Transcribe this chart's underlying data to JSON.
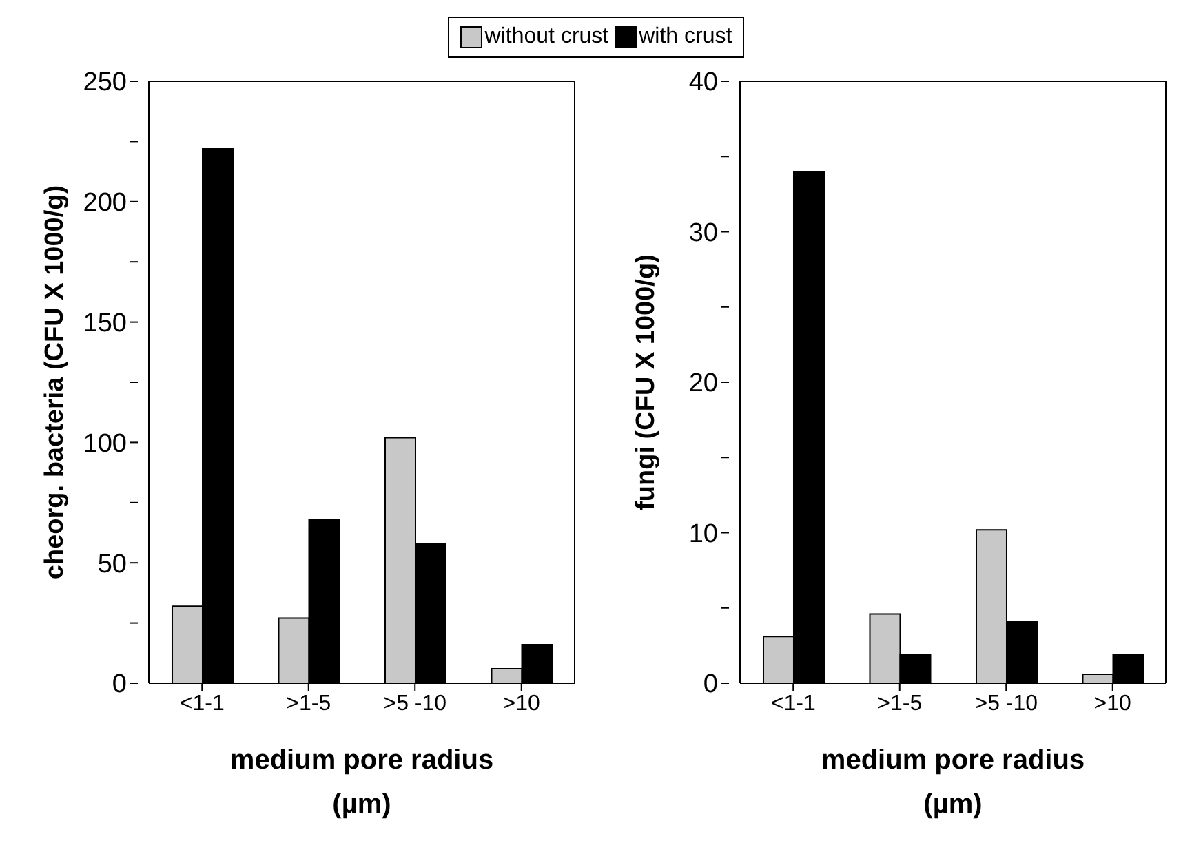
{
  "chart_data": [
    {
      "type": "bar",
      "ylabel": "cheorg. bacteria (CFU X 1000/g)",
      "xlabel": "medium pore radius\n(µm)",
      "categories": [
        "<1-1",
        ">1-5",
        ">5 -10",
        ">10"
      ],
      "series": [
        {
          "name": "without crust",
          "color": "#c8c8c8",
          "values": [
            32,
            27,
            102,
            6
          ]
        },
        {
          "name": "with crust",
          "color": "#000000",
          "values": [
            222,
            68,
            58,
            16
          ]
        }
      ],
      "ylim": [
        0,
        250
      ],
      "yticks": [
        0,
        {
          "value": 25,
          "label": null
        },
        50,
        {
          "value": 75,
          "label": null
        },
        100,
        {
          "value": 125,
          "label": null
        },
        150,
        {
          "value": 175,
          "label": null
        },
        200,
        {
          "value": 225,
          "label": null
        },
        250
      ],
      "grid": false,
      "legend": "top"
    },
    {
      "type": "bar",
      "ylabel": "fungi (CFU X 1000/g)",
      "xlabel": "medium pore radius\n(µm)",
      "categories": [
        "<1-1",
        ">1-5",
        ">5 -10",
        ">10"
      ],
      "series": [
        {
          "color": "#c8c8c8",
          "values": [
            3.1,
            4.6,
            10.2,
            0.6
          ]
        },
        {
          "color": "#000000",
          "values": [
            34,
            1.9,
            4.1,
            1.9
          ]
        }
      ],
      "ylim": [
        0,
        40
      ],
      "yticks": [
        0,
        {
          "value": 5,
          "label": null
        },
        10,
        {
          "value": 15,
          "label": null
        },
        20,
        {
          "value": 25,
          "label": null
        },
        30,
        {
          "value": 35,
          "label": null
        },
        40
      ],
      "grid": false
    }
  ]
}
